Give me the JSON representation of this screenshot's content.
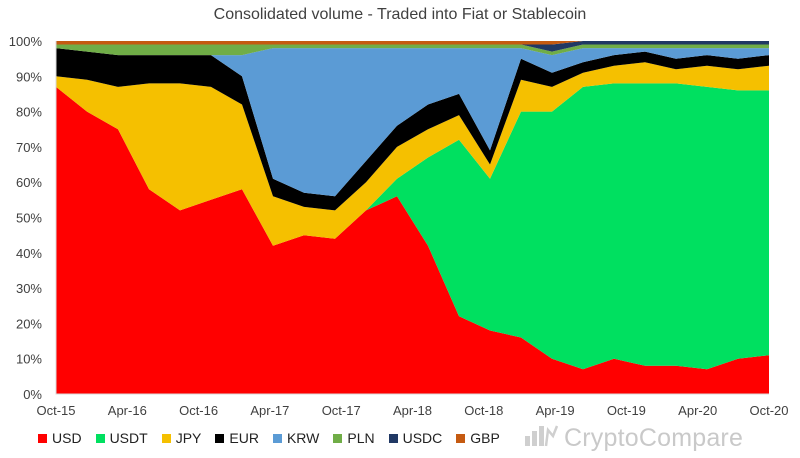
{
  "chart_data": {
    "type": "area",
    "stacked": true,
    "normalized": true,
    "title": "Consolidated volume - Traded into Fiat or Stablecoin",
    "xlabel": "",
    "ylabel": "",
    "ylim": [
      0,
      100
    ],
    "grid": false,
    "legend_placement": "bottom",
    "y_ticks": [
      "0%",
      "10%",
      "20%",
      "30%",
      "40%",
      "50%",
      "60%",
      "70%",
      "80%",
      "90%",
      "100%"
    ],
    "x_ticks": [
      "Oct-15",
      "Apr-16",
      "Oct-16",
      "Apr-17",
      "Oct-17",
      "Apr-18",
      "Oct-18",
      "Apr-19",
      "Oct-19",
      "Apr-20",
      "Oct-20"
    ],
    "x": [
      "Oct-15",
      "Jan-16",
      "Apr-16",
      "Jul-16",
      "Oct-16",
      "Jan-17",
      "Apr-17",
      "May-17",
      "Jul-17",
      "Oct-17",
      "Dec-17",
      "Jan-18",
      "Apr-18",
      "Jul-18",
      "Oct-18",
      "Nov-18",
      "Jan-19",
      "Apr-19",
      "Jul-19",
      "Oct-19",
      "Jan-20",
      "Apr-20",
      "Jul-20",
      "Oct-20"
    ],
    "series": [
      {
        "name": "USD",
        "color": "#ff0000",
        "values": [
          87,
          80,
          75,
          58,
          52,
          55,
          58,
          42,
          45,
          44,
          52,
          56,
          42,
          22,
          18,
          16,
          10,
          7,
          10,
          8,
          8,
          7,
          10,
          11
        ]
      },
      {
        "name": "USDT",
        "color": "#00e060",
        "values": [
          0,
          0,
          0,
          0,
          0,
          0,
          0,
          0,
          0,
          0,
          0,
          5,
          25,
          50,
          43,
          64,
          70,
          80,
          78,
          80,
          80,
          80,
          76,
          75
        ]
      },
      {
        "name": "JPY",
        "color": "#f5c000",
        "values": [
          3,
          9,
          12,
          30,
          36,
          32,
          24,
          14,
          8,
          8,
          8,
          9,
          8,
          7,
          4,
          9,
          7,
          4,
          5,
          6,
          4,
          6,
          6,
          7
        ]
      },
      {
        "name": "EUR",
        "color": "#000000",
        "values": [
          8,
          8,
          9,
          8,
          8,
          9,
          8,
          5,
          4,
          4,
          6,
          6,
          7,
          6,
          4,
          6,
          4,
          3,
          3,
          3,
          3,
          3,
          3,
          3
        ]
      },
      {
        "name": "KRW",
        "color": "#5b9bd5",
        "values": [
          0,
          0,
          0,
          0,
          0,
          0,
          6,
          37,
          41,
          42,
          32,
          22,
          16,
          13,
          29,
          3,
          5,
          4,
          2,
          1,
          3,
          2,
          3,
          2
        ]
      },
      {
        "name": "PLN",
        "color": "#70ad47",
        "values": [
          1,
          2,
          3,
          3,
          3,
          3,
          3,
          1,
          1,
          1,
          1,
          1,
          1,
          1,
          1,
          1,
          1,
          1,
          1,
          1,
          1,
          1,
          1,
          1
        ]
      },
      {
        "name": "USDC",
        "color": "#203864",
        "values": [
          0,
          0,
          0,
          0,
          0,
          0,
          0,
          0,
          0,
          0,
          0,
          0,
          0,
          0,
          0,
          0,
          2,
          1,
          1,
          1,
          1,
          1,
          1,
          1
        ]
      },
      {
        "name": "GBP",
        "color": "#c55a11",
        "values": [
          1,
          1,
          1,
          1,
          1,
          1,
          1,
          1,
          1,
          1,
          1,
          1,
          1,
          1,
          1,
          1,
          1,
          0,
          0,
          0,
          0,
          0,
          0,
          0
        ]
      }
    ]
  },
  "watermark": {
    "text": "CryptoCompare",
    "icon": "cryptocompare-logo-icon"
  }
}
